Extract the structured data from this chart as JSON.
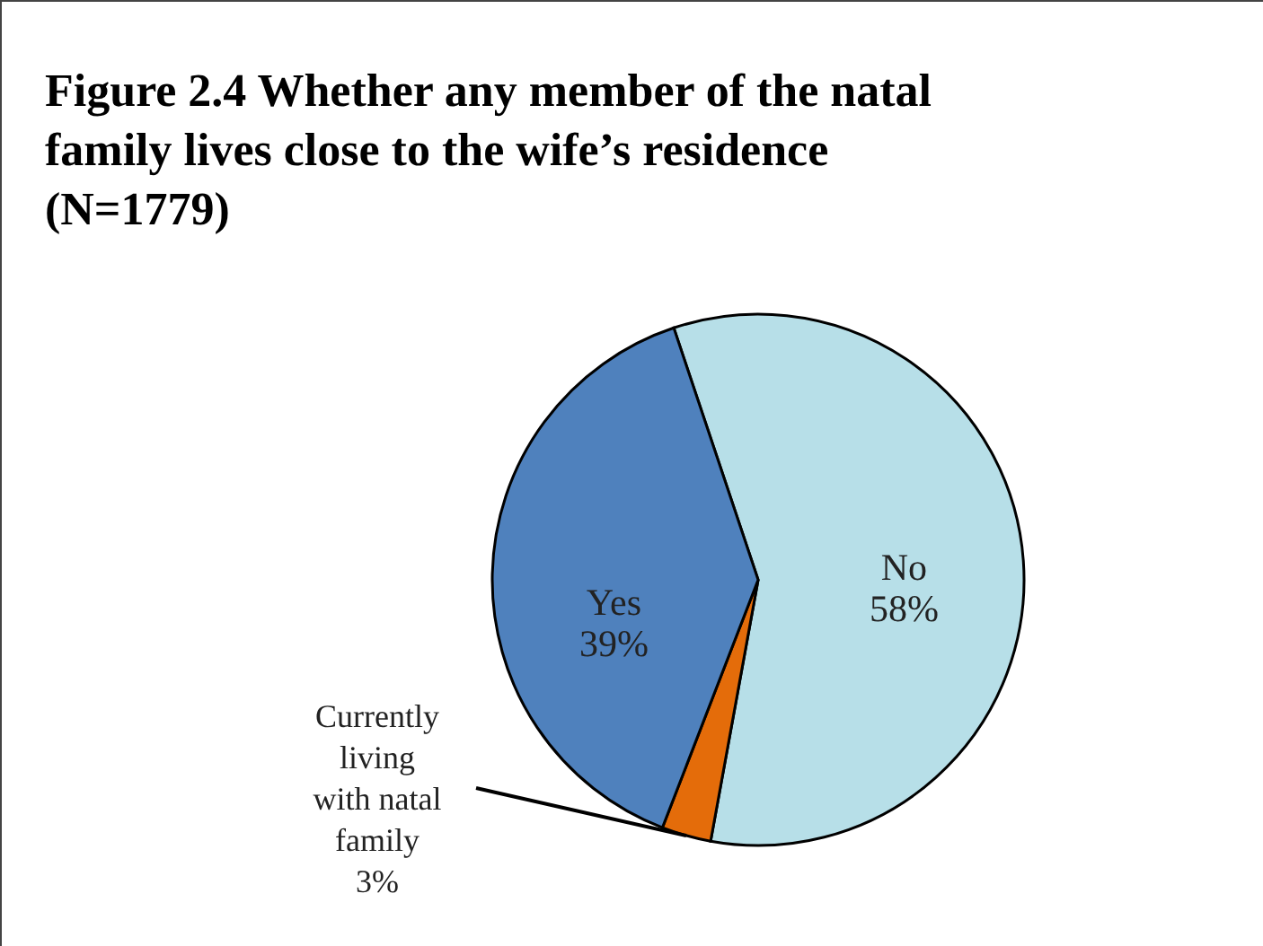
{
  "chart_data": {
    "type": "pie",
    "title": "Figure 2.4 Whether any member of the natal family lives close to the wife’s residence (N=1779)",
    "categories": [
      "No",
      "Currently living with natal family",
      "Yes"
    ],
    "values": [
      58,
      3,
      39
    ],
    "colors": [
      "#b7dfe8",
      "#e46c0a",
      "#4f81bd"
    ],
    "value_labels": [
      "58%",
      "3%",
      "39%"
    ]
  }
}
